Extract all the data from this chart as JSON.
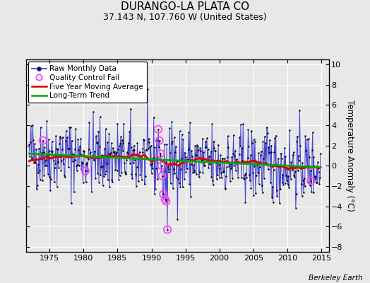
{
  "title": "DURANGO-LA PLATA CO",
  "subtitle": "37.143 N, 107.760 W (United States)",
  "ylabel": "Temperature Anomaly (°C)",
  "watermark": "Berkeley Earth",
  "xlim": [
    1971.5,
    2016.2
  ],
  "ylim": [
    -8.5,
    10.5
  ],
  "yticks": [
    -8,
    -6,
    -4,
    -2,
    0,
    2,
    4,
    6,
    8,
    10
  ],
  "xticks": [
    1975,
    1980,
    1985,
    1990,
    1995,
    2000,
    2005,
    2010,
    2015
  ],
  "bg_color": "#e8e8e8",
  "plot_bg_color": "#e8e8e8",
  "grid_color": "#cccccc",
  "raw_color": "#3333cc",
  "raw_dot_color": "#000000",
  "ma_color": "#dd0000",
  "trend_color": "#00aa00",
  "qc_color": "#ff44ff",
  "years_start": 1972,
  "years_end": 2014,
  "seed": 42,
  "title_fontsize": 11,
  "subtitle_fontsize": 9,
  "legend_fontsize": 7.5,
  "axis_fontsize": 8,
  "watermark_fontsize": 7.5
}
